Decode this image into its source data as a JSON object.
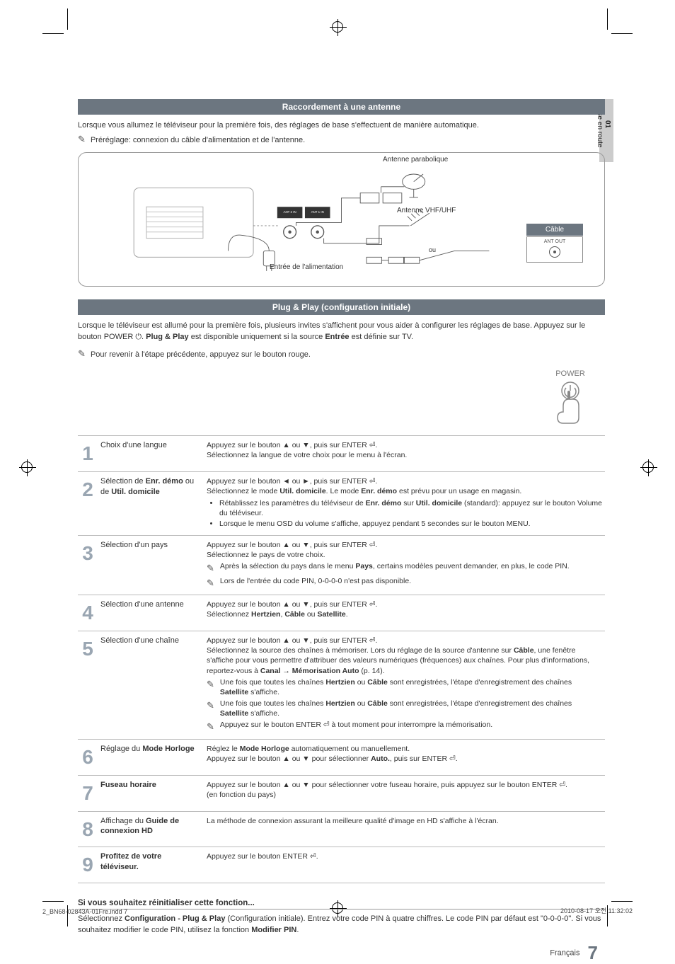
{
  "sideTab": {
    "num": "01",
    "label": "Mise en route"
  },
  "section1": {
    "title": "Raccordement à une antenne",
    "intro": "Lorsque vous allumez le téléviseur pour la première fois, des réglages de base s'effectuent de manière automatique.",
    "preset": "Préréglage: connexion du câble d'alimentation et de l'antenne."
  },
  "diagram": {
    "parabolic": "Antenne parabolique",
    "vhf": "Antenne VHF/UHF",
    "power": "Entrée de l'alimentation",
    "cable": "Câble",
    "antout": "ANT OUT",
    "or": "ou",
    "port1": "ANT 2 IN (SATELLITE)",
    "port2": "ANT 1 IN (AIR/CABLE)"
  },
  "section2": {
    "title": "Plug & Play (configuration initiale)",
    "intro_a": "Lorsque le téléviseur est allumé pour la première fois, plusieurs invites s'affichent pour vous aider à configurer les réglages de base. Appuyez sur le bouton POWER ",
    "intro_b": ". ",
    "intro_c": "Plug & Play",
    "intro_d": " est disponible uniquement si la source ",
    "intro_e": "Entrée",
    "intro_f": " est définie sur TV.",
    "back_note": "Pour revenir à l'étape précédente, appuyez sur le bouton rouge.",
    "power_label": "POWER"
  },
  "steps": [
    {
      "n": "1",
      "label": "Choix d'une langue",
      "body": "Appuyez sur le bouton ▲ ou ▼, puis sur ENTER ⏎.\nSélectionnez la langue de votre choix pour le menu à l'écran."
    },
    {
      "n": "2",
      "label_html": "Sélection de <b>Enr. démo</b> ou de <b>Util. domicile</b>",
      "body_html": "Appuyez sur le bouton ◄ ou ►, puis sur ENTER ⏎.<br>Sélectionnez le mode <b>Util. domicile</b>. Le mode <b>Enr. démo</b> est prévu pour un usage en magasin.<ul><li>Rétablissez les paramètres du téléviseur de <b>Enr. démo</b> sur <b>Util. domicile</b> (standard): appuyez sur le bouton Volume du téléviseur.</li><li>Lorsque le menu OSD du volume s'affiche, appuyez pendant 5 secondes sur le bouton MENU.</li></ul>"
    },
    {
      "n": "3",
      "label": "Sélection d'un pays",
      "body_html": "Appuyez sur le bouton ▲ ou ▼, puis sur ENTER ⏎.<br>Sélectionnez le pays de votre choix.",
      "notes": [
        "Après la sélection du pays dans le menu <b>Pays</b>, certains modèles peuvent demander, en plus, le code PIN.",
        "Lors de l'entrée du code PIN, 0-0-0-0 n'est pas disponible."
      ]
    },
    {
      "n": "4",
      "label": "Sélection d'une antenne",
      "body_html": "Appuyez sur le bouton ▲ ou ▼, puis sur ENTER ⏎.<br>Sélectionnez <b>Hertzien</b>, <b>Câble</b> ou <b>Satellite</b>."
    },
    {
      "n": "5",
      "label": "Sélection d'une chaîne",
      "body_html": "Appuyez sur le bouton ▲ ou ▼, puis sur ENTER ⏎.<br>Sélectionnez la source des chaînes à mémoriser. Lors du réglage de la source d'antenne sur <b>Câble</b>, une fenêtre s'affiche pour vous permettre d'attribuer des valeurs numériques (fréquences) aux chaînes. Pour plus d'informations, reportez-vous à <b>Canal → Mémorisation Auto</b> (p. 14).",
      "notes": [
        "Une fois que toutes les chaînes <b>Hertzien</b> ou <b>Câble</b> sont enregistrées, l'étape d'enregistrement des chaînes <b>Satellite</b> s'affiche.",
        "Une fois que toutes les chaînes <b>Hertzien</b> ou <b>Câble</b> sont enregistrées, l'étape d'enregistrement des chaînes <b>Satellite</b> s'affiche.",
        "Appuyez sur le bouton ENTER ⏎ à tout moment pour interrompre la mémorisation."
      ]
    },
    {
      "n": "6",
      "label_html": "Réglage du <b>Mode Horloge</b>",
      "body_html": "Réglez le <b>Mode Horloge</b> automatiquement ou manuellement.<br>Appuyez sur le bouton ▲ ou ▼ pour sélectionner <b>Auto.</b>, puis sur ENTER ⏎."
    },
    {
      "n": "7",
      "label_html": "<b>Fuseau horaire</b>",
      "body_html": "Appuyez sur le bouton ▲ ou ▼ pour sélectionner votre fuseau horaire, puis appuyez sur le bouton ENTER ⏎.<br>(en fonction du pays)"
    },
    {
      "n": "8",
      "label_html": "Affichage du <b>Guide de connexion HD</b>",
      "body_html": "La méthode de connexion assurant la meilleure qualité d'image en HD s'affiche à l'écran."
    },
    {
      "n": "9",
      "label_html": "<b>Profitez de votre téléviseur.</b>",
      "body_html": "Appuyez sur le bouton ENTER ⏎."
    }
  ],
  "reset": {
    "head": "Si vous souhaitez réinitialiser cette fonction...",
    "body_html": "Sélectionnez <b>Configuration - Plug & Play</b> (Configuration initiale). Entrez votre code PIN à quatre chiffres. Le code PIN par défaut est \"0-0-0-0\". Si vous souhaitez modifier le code PIN, utilisez la fonction <b>Modifier PIN</b>."
  },
  "footer": {
    "lang": "Français",
    "page": "7",
    "left": "2_BN68-02843A-01Fre.indd   7",
    "right": "2010-08-17   오전 11:32:02"
  },
  "colors": {
    "bar": "#6c7680",
    "stepnum": "#9aa6b2",
    "border": "#bbbbbb"
  }
}
